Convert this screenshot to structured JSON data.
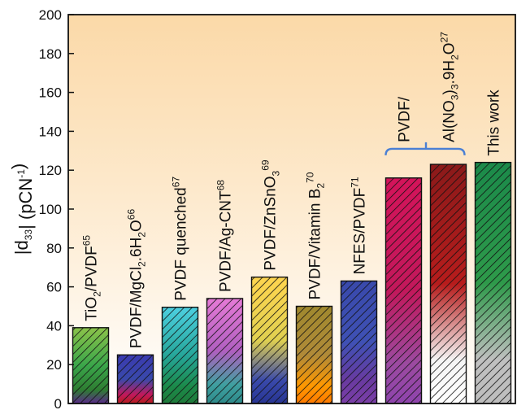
{
  "chart_data": {
    "type": "bar",
    "ylabel_parts": [
      "|d",
      "33",
      "| (pCN",
      "-1",
      ")"
    ],
    "ylim": [
      0,
      200
    ],
    "yticks": [
      0,
      20,
      40,
      60,
      80,
      100,
      120,
      140,
      160,
      180,
      200
    ],
    "grid": false,
    "background": "gradient light yellow to peach",
    "bars": [
      {
        "label_parts": [
          [
            "TiO",
            ""
          ],
          [
            "2",
            "sub"
          ],
          [
            "/PVDF",
            ""
          ],
          [
            "65",
            "sup"
          ]
        ],
        "value": 39,
        "colors": [
          "#8bc34a",
          "#3aa64a",
          "#2e7d32",
          "#5a2a8a"
        ]
      },
      {
        "label_parts": [
          [
            "PVDF/MgCl",
            ""
          ],
          [
            "2",
            "sub"
          ],
          [
            ".6H",
            ""
          ],
          [
            "2",
            "sub"
          ],
          [
            "O",
            ""
          ],
          [
            "66",
            "sup"
          ]
        ],
        "value": 25,
        "colors": [
          "#3a3ab0",
          "#3949ab",
          "#c2185b",
          "#b71c1c"
        ]
      },
      {
        "label_parts": [
          [
            "PVDF quenched",
            ""
          ],
          [
            "67",
            "sup"
          ]
        ],
        "value": 49.5,
        "colors": [
          "#4dd0e1",
          "#26a69a",
          "#1b8a4a",
          "#1e7a3a"
        ]
      },
      {
        "label_parts": [
          [
            "PVDF/Ag-CNT",
            ""
          ],
          [
            "68",
            "sup"
          ]
        ],
        "value": 54,
        "colors": [
          "#e57ad6",
          "#b05fc0",
          "#3fa0a0",
          "#2e8a8a"
        ]
      },
      {
        "label_parts": [
          [
            "PVDF/ZnSnO",
            ""
          ],
          [
            "3",
            "sub"
          ],
          [
            "69",
            "sup"
          ]
        ],
        "value": 65,
        "colors": [
          "#ffd54f",
          "#e0d050",
          "#3949ab",
          "#283593"
        ]
      },
      {
        "label_parts": [
          [
            "PVDF/Vitamin B",
            ""
          ],
          [
            "2",
            "sub"
          ],
          [
            "70",
            "sup"
          ]
        ],
        "value": 50,
        "colors": [
          "#a0892e",
          "#b08a38",
          "#ff9800",
          "#ff7a00"
        ]
      },
      {
        "label_parts": [
          [
            "NFES/PVDF",
            ""
          ],
          [
            "71",
            "sup"
          ]
        ],
        "value": 63,
        "colors": [
          "#3949ab",
          "#3f51b5",
          "#6a3aa0",
          "#7b3fa8"
        ]
      },
      {
        "label_parts": [],
        "value": 116,
        "colors": [
          "#d4145a",
          "#c2185b",
          "#9c4aa0",
          "#8e44ad"
        ]
      },
      {
        "label_parts": [],
        "value": 123,
        "colors": [
          "#8b1a1a",
          "#b71c1c",
          "#f5f5f5",
          "#ffffff"
        ]
      },
      {
        "label_parts": [
          [
            "This work",
            ""
          ]
        ],
        "value": 124,
        "colors": [
          "#1b8a4a",
          "#2e9a4a",
          "#c0c0c0",
          "#bdbdbd"
        ]
      }
    ],
    "group_label": {
      "line1": "PVDF/",
      "line2_parts": [
        [
          "Al(NO",
          ""
        ],
        [
          "3",
          "sub"
        ],
        [
          ")",
          ""
        ],
        [
          "3",
          "sub"
        ],
        [
          ".9H",
          ""
        ],
        [
          "2",
          "sub"
        ],
        [
          "O",
          ""
        ],
        [
          "27",
          "sup"
        ]
      ]
    },
    "bracket_color": "#4a7fd4"
  }
}
